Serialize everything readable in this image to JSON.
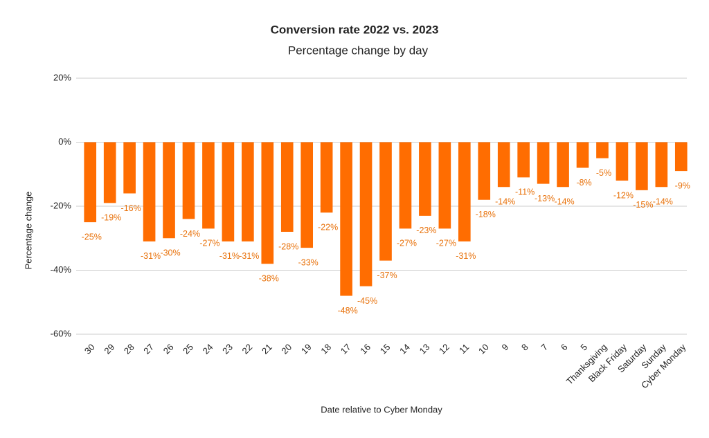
{
  "chart_data": {
    "type": "bar",
    "title": "Conversion rate 2022 vs. 2023",
    "subtitle": "Percentage change by day",
    "x_label": "Date relative to Cyber Monday",
    "y_label": "Percentage change",
    "categories": [
      "30",
      "29",
      "28",
      "27",
      "26",
      "25",
      "24",
      "23",
      "22",
      "21",
      "20",
      "19",
      "18",
      "17",
      "16",
      "15",
      "14",
      "13",
      "12",
      "11",
      "10",
      "9",
      "8",
      "7",
      "6",
      "5",
      "Thanksgiving",
      "Black Friday",
      "Saturday",
      "Sunday",
      "Cyber Monday"
    ],
    "values": [
      -25,
      -19,
      -16,
      -31,
      -30,
      -24,
      -27,
      -31,
      -31,
      -38,
      -28,
      -33,
      -22,
      -48,
      -45,
      -37,
      -27,
      -23,
      -27,
      -31,
      -18,
      -14,
      -11,
      -13,
      -14,
      -8,
      -5,
      -12,
      -15,
      -14,
      -9
    ],
    "value_labels": [
      "-25%",
      "-19%",
      "-16%",
      "-31%",
      "-30%",
      "-24%",
      "-27%",
      "-31%",
      "-31%",
      "-38%",
      "-28%",
      "-33%",
      "-22%",
      "-48%",
      "-45%",
      "-37%",
      "-27%",
      "-23%",
      "-27%",
      "-31%",
      "-18%",
      "-14%",
      "-11%",
      "-13%",
      "-14%",
      "-8%",
      "-5%",
      "-12%",
      "-15%",
      "-14%",
      "-9%"
    ],
    "color": "#ff6d01",
    "ylim": [
      -60,
      20
    ],
    "yticks": [
      {
        "value": -60,
        "label": "-60%"
      },
      {
        "value": -40,
        "label": "-40%"
      },
      {
        "value": -20,
        "label": "-20%"
      },
      {
        "value": 0,
        "label": "0%"
      },
      {
        "value": 20,
        "label": "20%"
      }
    ],
    "grid": true
  }
}
